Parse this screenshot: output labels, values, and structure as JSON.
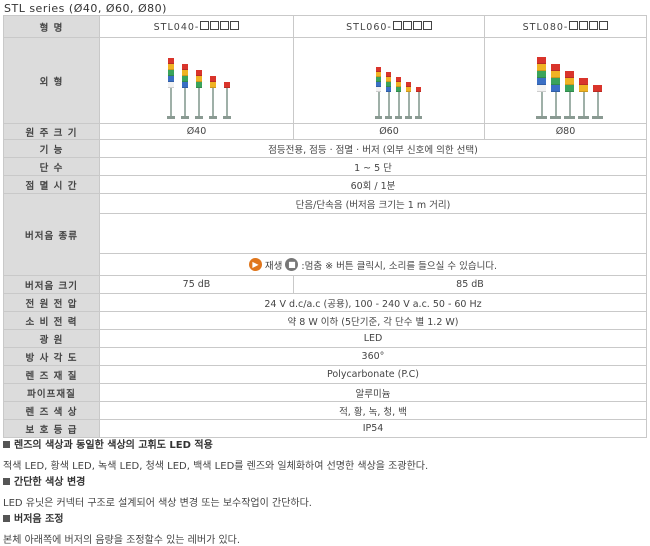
{
  "title": "STL series (Ø40, Ø60, Ø80)",
  "header": {
    "label": "형 명",
    "models": [
      "STL040-",
      "STL060-",
      "STL080-"
    ]
  },
  "appearance_label": "외 형",
  "rows": {
    "diameter": {
      "label": "원 주 크 기",
      "values": [
        "Ø40",
        "Ø60",
        "Ø80"
      ]
    },
    "function": {
      "label": "기 능",
      "value": "점등전용, 점등 · 점멸 · 버저 (외부 신호에 의한 선택)"
    },
    "tiers": {
      "label": "단 수",
      "value": "1 ~ 5 단"
    },
    "flash": {
      "label": "점 멸 시 간",
      "value": "60회 / 1분"
    },
    "buzzer_type": {
      "label": "버저음 종류",
      "value": "단음/단속음 (버저음 크기는 1 m 거리)",
      "play": "재생",
      "note": ":멈춤 ※ 버튼 클릭시, 소리를 들으실 수 있습니다."
    },
    "buzzer_volume": {
      "label": "버저음 크기",
      "values": [
        "75 dB",
        "85 dB"
      ]
    },
    "voltage": {
      "label": "전 원 전 압",
      "value": "24 V d.c/a.c (공용), 100 - 240 V a.c. 50 - 60 Hz"
    },
    "power": {
      "label": "소 비 전 력",
      "value": "약 8 W 이하 (5단기준, 각 단수 별 1.2 W)"
    },
    "light_source": {
      "label": "광 원",
      "value": "LED"
    },
    "radiation": {
      "label": "방 사 각 도",
      "value": "360°"
    },
    "lens_material": {
      "label": "렌 즈 재 질",
      "value": "Polycarbonate (P.C)"
    },
    "pipe_material": {
      "label": "파이프재질",
      "value": "알루미늄"
    },
    "lens_color": {
      "label": "렌 즈 색 상",
      "value": "적, 황, 녹, 청, 백"
    },
    "protection": {
      "label": "보 호 등 급",
      "value": "IP54"
    }
  },
  "sections": [
    {
      "heading": "렌즈의 색상과 동일한 색상의 고휘도 LED 적용",
      "body": "적색 LED, 황색 LED, 녹색 LED, 청색 LED, 백색 LED를 렌즈와 일체화하여 선명한 색상을 조광한다."
    },
    {
      "heading": "간단한 색상 변경",
      "body": "LED 유닛은 커넥터 구조로 설계되어 색상 변경 또는 보수작업이 간단하다."
    },
    {
      "heading": "버저음 조정",
      "body": "본체 아래쪽에 버저의 음량을 조정할수 있는 레버가 있다."
    }
  ],
  "colors": {
    "label_bg": "#dcdcdc",
    "border": "#c9c9c9",
    "red": "#d9342b",
    "yellow": "#f0b323",
    "green": "#3aa35b",
    "blue": "#3a6fc4",
    "white": "#f2f2f2",
    "play_icon": "#e0761c"
  },
  "icons": [
    "play-icon",
    "stop-icon",
    "bullet-square-icon"
  ]
}
